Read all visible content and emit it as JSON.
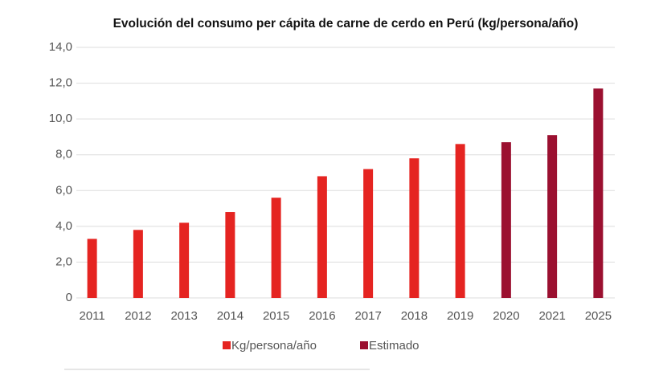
{
  "chart_data": {
    "type": "bar",
    "title": "Evolución del consumo per cápita de carne de cerdo en Perú (kg/persona/año)",
    "categories": [
      "2011",
      "2012",
      "2013",
      "2014",
      "2015",
      "2016",
      "2017",
      "2018",
      "2019",
      "2020",
      "2021",
      "2025"
    ],
    "series": [
      {
        "name": "Kg/persona/año",
        "color": "#e52421",
        "values": [
          3.3,
          3.8,
          4.2,
          4.8,
          5.6,
          6.8,
          7.2,
          7.8,
          8.6,
          null,
          null,
          null
        ]
      },
      {
        "name": "Estimado",
        "color": "#9b1030",
        "values": [
          null,
          null,
          null,
          null,
          null,
          null,
          null,
          null,
          null,
          8.7,
          9.1,
          11.7
        ]
      }
    ],
    "ylim": [
      0,
      14
    ],
    "yticks": [
      0,
      {
        "value": 2,
        "label": "2,0"
      },
      {
        "value": 4,
        "label": "4,0"
      },
      {
        "value": 6,
        "label": "6,0"
      },
      {
        "value": 8,
        "label": "8,0"
      },
      {
        "value": 10,
        "label": "10,0"
      },
      {
        "value": 12,
        "label": "12,0"
      },
      {
        "value": 14,
        "label": "14,0"
      }
    ],
    "grid": true
  }
}
